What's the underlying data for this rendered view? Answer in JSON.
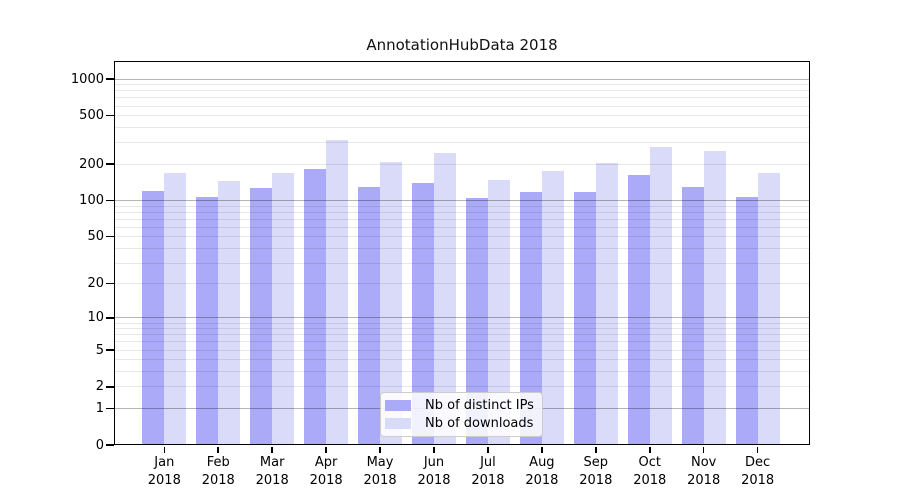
{
  "chart_data": {
    "type": "bar",
    "title": "AnnotationHubData 2018",
    "categories": [
      "Jan",
      "Feb",
      "Mar",
      "Apr",
      "May",
      "Jun",
      "Jul",
      "Aug",
      "Sep",
      "Oct",
      "Nov",
      "Dec"
    ],
    "year_label": "2018",
    "series": [
      {
        "name": "Nb of distinct IPs",
        "color": "#aaaaf8",
        "values": [
          120,
          107,
          126,
          182,
          129,
          140,
          104,
          118,
          118,
          162,
          130,
          107
        ]
      },
      {
        "name": "Nb of downloads",
        "color": "#dadaf9",
        "values": [
          170,
          146,
          170,
          315,
          210,
          245,
          148,
          177,
          205,
          277,
          257,
          168
        ]
      }
    ],
    "xlabel": "",
    "ylabel": "",
    "yscale": "log1p",
    "y_ticks": [
      0,
      1,
      2,
      5,
      10,
      20,
      50,
      100,
      200,
      500,
      1000
    ],
    "ylim": [
      0,
      1400
    ],
    "grid": "horizontal major and minor",
    "legend_position": "inside bottom-center"
  }
}
